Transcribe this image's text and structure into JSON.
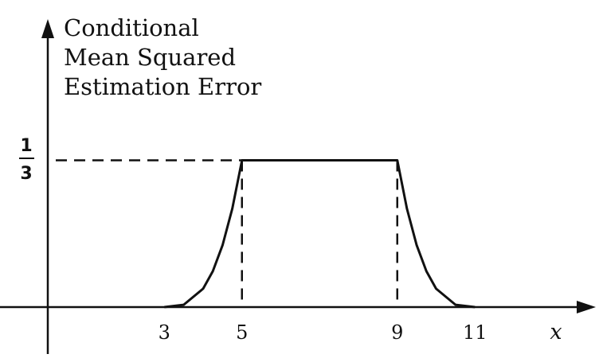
{
  "chart_data": {
    "type": "line",
    "title_lines": [
      "Conditional",
      "Mean Squared",
      "Estimation Error"
    ],
    "xlabel": "x",
    "ylabel": "",
    "x_ticks": [
      "3",
      "5",
      "9",
      "11"
    ],
    "y_tick": {
      "numerator": "1",
      "denominator": "3",
      "value": 0.3333
    },
    "xlim": [
      -1.5,
      12.5
    ],
    "ylim": [
      0,
      0.42
    ],
    "series": [
      {
        "x": [
          3,
          3.5,
          4,
          4.25,
          4.5,
          4.75,
          5,
          5,
          9,
          9,
          9.25,
          9.5,
          9.75,
          10,
          10.5,
          11
        ],
        "y": [
          0,
          0.0052,
          0.0417,
          0.0814,
          0.1406,
          0.2233,
          0.3333,
          0.3333,
          0.3333,
          0.3333,
          0.2233,
          0.1406,
          0.0814,
          0.0417,
          0.0052,
          0
        ]
      }
    ],
    "reference_lines": {
      "dashed_horizontal_y": 0.3333,
      "dashed_vertical_x": [
        5,
        9
      ]
    },
    "grid": false,
    "legend": "none"
  }
}
